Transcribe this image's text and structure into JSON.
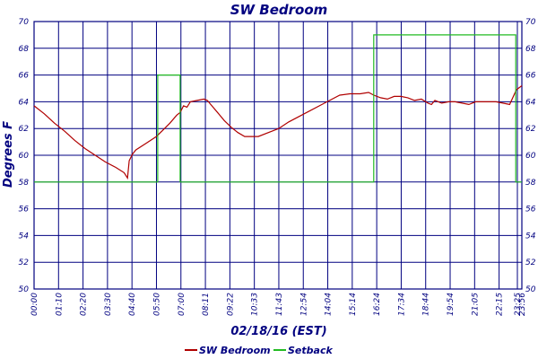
{
  "chart_data": {
    "type": "line",
    "title": "SW Bedroom",
    "xlabel": "02/18/16 (EST)",
    "ylabel": "Degrees F",
    "ylim": [
      50,
      70
    ],
    "y_ticks": [
      50,
      52,
      54,
      56,
      58,
      60,
      62,
      64,
      66,
      68,
      70
    ],
    "x_tick_labels": [
      "00:00",
      "01:10",
      "02:20",
      "03:30",
      "04:40",
      "05:50",
      "07:00",
      "08:11",
      "09:22",
      "10:33",
      "11:43",
      "12:54",
      "14:04",
      "15:14",
      "16:24",
      "17:34",
      "18:44",
      "19:54",
      "21:05",
      "22:15",
      "23:25",
      "23:56"
    ],
    "grid": true,
    "legend_position": "bottom",
    "colors": {
      "SW Bedroom": "#b00000",
      "Setback": "#22bb22",
      "axis": "#000080"
    },
    "series": [
      {
        "name": "SW Bedroom",
        "x": [
          0,
          30,
          60,
          90,
          120,
          150,
          180,
          210,
          240,
          265,
          275,
          280,
          290,
          300,
          330,
          360,
          380,
          400,
          420,
          430,
          440,
          450,
          460,
          480,
          500,
          510,
          520,
          540,
          560,
          580,
          600,
          620,
          660,
          700,
          720,
          750,
          780,
          810,
          840,
          870,
          900,
          930,
          960,
          985,
          1000,
          1020,
          1040,
          1060,
          1080,
          1100,
          1120,
          1140,
          1160,
          1170,
          1180,
          1200,
          1220,
          1240,
          1260,
          1280,
          1300,
          1320,
          1340,
          1360,
          1380,
          1400,
          1420,
          1436
        ],
        "y": [
          63.7,
          63.1,
          62.4,
          61.8,
          61.1,
          60.5,
          60.0,
          59.5,
          59.1,
          58.7,
          58.3,
          59.6,
          60.1,
          60.4,
          60.9,
          61.4,
          61.9,
          62.4,
          63.0,
          63.2,
          63.7,
          63.6,
          64.0,
          64.1,
          64.2,
          64.1,
          63.8,
          63.2,
          62.6,
          62.1,
          61.7,
          61.4,
          61.4,
          61.8,
          62.0,
          62.5,
          62.9,
          63.3,
          63.7,
          64.1,
          64.5,
          64.6,
          64.6,
          64.7,
          64.5,
          64.3,
          64.2,
          64.4,
          64.4,
          64.3,
          64.1,
          64.2,
          63.9,
          63.8,
          64.1,
          63.9,
          64.0,
          64.0,
          63.9,
          63.8,
          64.0,
          64.0,
          64.0,
          64.0,
          63.9,
          63.8,
          64.9,
          65.2
        ]
      },
      {
        "name": "Setback",
        "x": [
          0,
          364,
          364,
          430,
          430,
          1000,
          1000,
          1418,
          1418,
          1436
        ],
        "y": [
          58,
          58,
          66,
          66,
          58,
          58,
          69,
          69,
          58,
          58
        ]
      }
    ]
  },
  "legend": [
    {
      "label": "SW Bedroom",
      "color": "#b00000"
    },
    {
      "label": "Setback",
      "color": "#22bb22"
    }
  ]
}
